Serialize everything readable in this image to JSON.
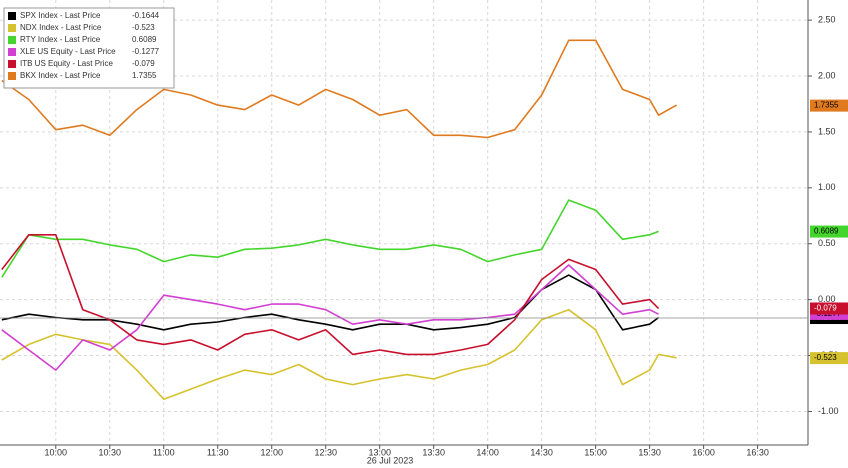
{
  "chart_data": {
    "type": "line",
    "x_label": "26 Jul 2023",
    "x": [
      "09:30",
      "09:45",
      "10:00",
      "10:15",
      "10:30",
      "10:45",
      "11:00",
      "11:15",
      "11:30",
      "11:45",
      "12:00",
      "12:15",
      "12:30",
      "12:45",
      "13:00",
      "13:15",
      "13:30",
      "13:45",
      "14:00",
      "14:15",
      "14:30",
      "14:45",
      "15:00",
      "15:15",
      "15:30",
      "15:35",
      "15:45"
    ],
    "xlim": [
      "09:29",
      "16:58"
    ],
    "xticks": [
      "10:00",
      "10:30",
      "11:00",
      "11:30",
      "12:00",
      "12:30",
      "13:00",
      "13:30",
      "14:00",
      "14:30",
      "15:00",
      "15:30",
      "16:00",
      "16:30"
    ],
    "ylim": [
      -1.3,
      2.68
    ],
    "yticks": [
      {
        "value": -1,
        "label": "-1.00"
      },
      {
        "value": -0.5,
        "label": "-0.50"
      },
      {
        "value": 0,
        "label": "0.00"
      },
      {
        "value": 0.5,
        "label": "0.50"
      },
      {
        "value": 1,
        "label": "1.00"
      },
      {
        "value": 1.5,
        "label": "1.50"
      },
      {
        "value": 2,
        "label": "2.00"
      },
      {
        "value": 2.5,
        "label": "2.50"
      }
    ],
    "grid": true,
    "legend": "top-left",
    "series": [
      {
        "name": "SPX Index - Last Price",
        "last_price": -0.1644,
        "color": "#000000",
        "values": [
          -0.18,
          -0.13,
          -0.16,
          -0.18,
          -0.18,
          -0.22,
          -0.27,
          -0.22,
          -0.2,
          -0.16,
          -0.13,
          -0.18,
          -0.22,
          -0.27,
          -0.22,
          -0.22,
          -0.27,
          -0.25,
          -0.22,
          -0.16,
          0.09,
          0.22,
          0.09,
          -0.27,
          -0.22,
          -0.16,
          null
        ]
      },
      {
        "name": "NDX Index - Last Price",
        "last_price": -0.523,
        "color": "#d6c22e",
        "values": [
          -0.54,
          -0.4,
          -0.31,
          -0.36,
          -0.4,
          -0.63,
          -0.89,
          -0.8,
          -0.71,
          -0.63,
          -0.67,
          -0.58,
          -0.71,
          -0.76,
          -0.71,
          -0.67,
          -0.71,
          -0.63,
          -0.58,
          -0.45,
          -0.18,
          -0.09,
          -0.27,
          -0.76,
          -0.63,
          -0.49,
          -0.52
        ]
      },
      {
        "name": "RTY Index - Last Price",
        "last_price": 0.6089,
        "color": "#44d62c",
        "values": [
          0.2,
          0.58,
          0.54,
          0.54,
          0.49,
          0.45,
          0.34,
          0.4,
          0.38,
          0.45,
          0.46,
          0.49,
          0.54,
          0.49,
          0.45,
          0.45,
          0.49,
          0.45,
          0.34,
          0.4,
          0.45,
          0.89,
          0.8,
          0.54,
          0.58,
          0.61,
          null
        ]
      },
      {
        "name": "XLE US Equity - Last Price",
        "last_price": -0.1277,
        "color": "#d23fd2",
        "values": [
          -0.27,
          -0.45,
          -0.63,
          -0.36,
          -0.45,
          -0.27,
          0.04,
          0,
          -0.04,
          -0.09,
          -0.04,
          -0.04,
          -0.09,
          -0.22,
          -0.18,
          -0.22,
          -0.18,
          -0.18,
          -0.16,
          -0.13,
          0.09,
          0.31,
          0.09,
          -0.13,
          -0.09,
          -0.13,
          null
        ]
      },
      {
        "name": "ITB US Equity - Last Price",
        "last_price": -0.079,
        "color": "#c8102e",
        "values": [
          0.27,
          0.58,
          0.58,
          -0.09,
          -0.18,
          -0.36,
          -0.4,
          -0.36,
          -0.45,
          -0.31,
          -0.27,
          -0.36,
          -0.27,
          -0.49,
          -0.45,
          -0.49,
          -0.49,
          -0.45,
          -0.4,
          -0.18,
          0.18,
          0.36,
          0.27,
          -0.04,
          0,
          -0.08,
          null
        ]
      },
      {
        "name": "BKX Index - Last Price",
        "last_price": 1.7355,
        "color": "#e07a1f",
        "values": [
          1.96,
          1.79,
          1.52,
          1.56,
          1.47,
          1.7,
          1.88,
          1.83,
          1.74,
          1.7,
          1.83,
          1.74,
          1.88,
          1.79,
          1.65,
          1.7,
          1.47,
          1.47,
          1.45,
          1.52,
          1.83,
          2.32,
          2.32,
          1.88,
          1.79,
          1.65,
          1.74
        ]
      }
    ]
  }
}
